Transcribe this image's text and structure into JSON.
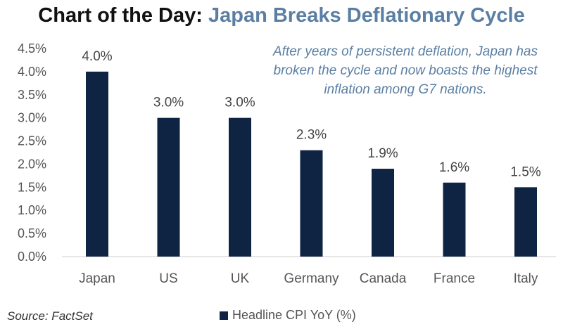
{
  "title": {
    "part1": "Chart of the Day:",
    "part2": "Japan Breaks Deflationary Cycle"
  },
  "annotation": "After years of persistent deflation, Japan has broken the cycle and now boasts the highest inflation among G7 nations.",
  "source": "Source: FactSet",
  "colors": {
    "bar": "#0f2443",
    "accent": "#5a7fa3",
    "title": "#111111",
    "axis_text": "#555555"
  },
  "chart_data": {
    "type": "bar",
    "title": "Chart of the Day: Japan Breaks Deflationary Cycle",
    "categories": [
      "Japan",
      "US",
      "UK",
      "Germany",
      "Canada",
      "France",
      "Italy"
    ],
    "series": [
      {
        "name": "Headline CPI YoY (%)",
        "values": [
          4.0,
          3.0,
          3.0,
          2.3,
          1.9,
          1.6,
          1.5
        ],
        "labels": [
          "4.0%",
          "3.0%",
          "3.0%",
          "2.3%",
          "1.9%",
          "1.6%",
          "1.5%"
        ]
      }
    ],
    "ylim": [
      0,
      4.5
    ],
    "yticks": [
      "0.0%",
      "0.5%",
      "1.0%",
      "1.5%",
      "2.0%",
      "2.5%",
      "3.0%",
      "3.5%",
      "4.0%",
      "4.5%"
    ],
    "xlabel": "",
    "ylabel": "",
    "grid": false,
    "legend_position": "bottom"
  }
}
